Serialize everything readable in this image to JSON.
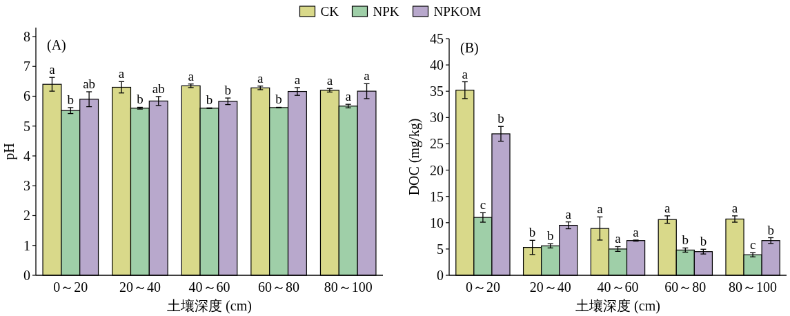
{
  "chart_data": [
    {
      "type": "bar",
      "title": "(A)",
      "xlabel": "土壤深度 (cm)",
      "ylabel": "pH",
      "categories": [
        "0～20",
        "20～40",
        "40～60",
        "60～80",
        "80～100"
      ],
      "ylim": [
        0,
        8.3
      ],
      "yticks": [
        0,
        1,
        2,
        3,
        4,
        5,
        6,
        7,
        8
      ],
      "legend": "top",
      "series": [
        {
          "name": "CK",
          "color": "#d9d98a",
          "values": [
            6.4,
            6.3,
            6.35,
            6.28,
            6.2
          ],
          "errors": [
            0.23,
            0.19,
            0.06,
            0.06,
            0.06
          ],
          "value_labels": [
            "a",
            "a",
            "a",
            "a",
            "a"
          ]
        },
        {
          "name": "NPK",
          "color": "#9fcfa8",
          "values": [
            5.52,
            5.6,
            5.6,
            5.62,
            5.67
          ],
          "errors": [
            0.1,
            0.03,
            0.01,
            0.01,
            0.06
          ],
          "value_labels": [
            "b",
            "b",
            "b",
            "b",
            "a"
          ]
        },
        {
          "name": "NPKOM",
          "color": "#b8a8cc",
          "values": [
            5.9,
            5.84,
            5.83,
            6.16,
            6.17
          ],
          "errors": [
            0.25,
            0.15,
            0.11,
            0.13,
            0.25
          ],
          "value_labels": [
            "ab",
            "ab",
            "b",
            "a",
            "a"
          ]
        }
      ]
    },
    {
      "type": "bar",
      "title": "(B)",
      "xlabel": "土壤深度 (cm)",
      "ylabel": "DOC (mg/kg)",
      "categories": [
        "0～20",
        "20～40",
        "40～60",
        "60～80",
        "80～100"
      ],
      "ylim": [
        0,
        45
      ],
      "yticks": [
        0,
        5,
        10,
        15,
        20,
        25,
        30,
        35,
        40,
        45
      ],
      "series": [
        {
          "color": "#d9d98a",
          "values": [
            35.2,
            5.3,
            8.9,
            10.6,
            10.7
          ],
          "errors": [
            1.6,
            1.35,
            2.2,
            0.7,
            0.6
          ],
          "value_labels": [
            "a",
            "b",
            "a",
            "a",
            "a"
          ]
        },
        {
          "color": "#9fcfa8",
          "values": [
            11.0,
            5.6,
            5.0,
            4.8,
            3.9
          ],
          "errors": [
            0.9,
            0.4,
            0.45,
            0.4,
            0.4
          ],
          "value_labels": [
            "c",
            "b",
            "a",
            "b",
            "c"
          ]
        },
        {
          "color": "#b8a8cc",
          "values": [
            26.9,
            9.5,
            6.6,
            4.5,
            6.6
          ],
          "errors": [
            1.4,
            0.65,
            0.1,
            0.45,
            0.55
          ],
          "value_labels": [
            "b",
            "a",
            "a",
            "b",
            "b"
          ]
        }
      ]
    }
  ]
}
